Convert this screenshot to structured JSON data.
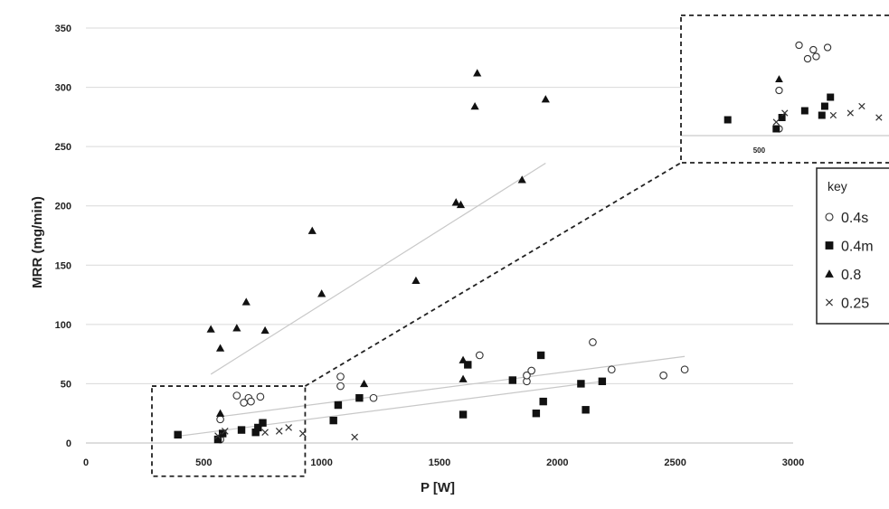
{
  "chart_data": {
    "type": "scatter",
    "title": "",
    "xlabel": "P [W]",
    "ylabel": "MRR (mg/min)",
    "xlim": [
      0,
      3000
    ],
    "ylim": [
      0,
      350
    ],
    "xticks": [
      0,
      500,
      1000,
      1500,
      2000,
      2500,
      3000
    ],
    "yticks": [
      0,
      50,
      100,
      150,
      200,
      250,
      300,
      350
    ],
    "grid": "horizontal",
    "legend": {
      "title": "key",
      "placement": "right",
      "entries": [
        "0.4s",
        "0.4m",
        "0.8",
        "0.25"
      ]
    },
    "series": [
      {
        "name": "0.4s",
        "marker": "open-circle",
        "points": [
          [
            570,
            20
          ],
          [
            570,
            3
          ],
          [
            640,
            40
          ],
          [
            670,
            34
          ],
          [
            690,
            38
          ],
          [
            700,
            35
          ],
          [
            740,
            39
          ],
          [
            1080,
            56
          ],
          [
            1080,
            48
          ],
          [
            1220,
            38
          ],
          [
            1670,
            74
          ],
          [
            1870,
            52
          ],
          [
            1870,
            57
          ],
          [
            1890,
            61
          ],
          [
            2150,
            85
          ],
          [
            2230,
            62
          ],
          [
            2450,
            57
          ],
          [
            2540,
            62
          ]
        ]
      },
      {
        "name": "0.4m",
        "marker": "filled-square",
        "points": [
          [
            390,
            7
          ],
          [
            560,
            3
          ],
          [
            580,
            8
          ],
          [
            660,
            11
          ],
          [
            720,
            9
          ],
          [
            730,
            13
          ],
          [
            750,
            17
          ],
          [
            1050,
            19
          ],
          [
            1070,
            32
          ],
          [
            1160,
            38
          ],
          [
            1600,
            24
          ],
          [
            1620,
            66
          ],
          [
            1810,
            53
          ],
          [
            1910,
            25
          ],
          [
            1930,
            74
          ],
          [
            1940,
            35
          ],
          [
            2100,
            50
          ],
          [
            2120,
            28
          ],
          [
            2190,
            52
          ]
        ]
      },
      {
        "name": "0.8",
        "marker": "filled-triangle",
        "points": [
          [
            530,
            96
          ],
          [
            570,
            80
          ],
          [
            570,
            25
          ],
          [
            640,
            97
          ],
          [
            680,
            119
          ],
          [
            760,
            95
          ],
          [
            960,
            179
          ],
          [
            1000,
            126
          ],
          [
            1180,
            50
          ],
          [
            1400,
            137
          ],
          [
            1570,
            203
          ],
          [
            1590,
            201
          ],
          [
            1600,
            70
          ],
          [
            1600,
            54
          ],
          [
            1650,
            284
          ],
          [
            1660,
            312
          ],
          [
            1850,
            222
          ],
          [
            1950,
            290
          ]
        ]
      },
      {
        "name": "0.25",
        "marker": "cross",
        "points": [
          [
            560,
            6
          ],
          [
            590,
            10
          ],
          [
            760,
            9
          ],
          [
            820,
            10
          ],
          [
            860,
            13
          ],
          [
            920,
            8
          ],
          [
            1140,
            5
          ]
        ]
      }
    ],
    "trendlines": [
      {
        "series": "0.8",
        "from": [
          530,
          58
        ],
        "to": [
          1950,
          236
        ]
      },
      {
        "series": "0.4s",
        "from": [
          560,
          22
        ],
        "to": [
          2540,
          73
        ]
      },
      {
        "series": "0.4m",
        "from": [
          400,
          6
        ],
        "to": [
          2190,
          52
        ]
      }
    ],
    "inset": {
      "source_region": {
        "x": [
          280,
          930
        ],
        "y": [
          -28,
          48
        ]
      },
      "tick_label": "500",
      "content": "magnified view of the region P 280-930 W, MRR below 50"
    }
  }
}
